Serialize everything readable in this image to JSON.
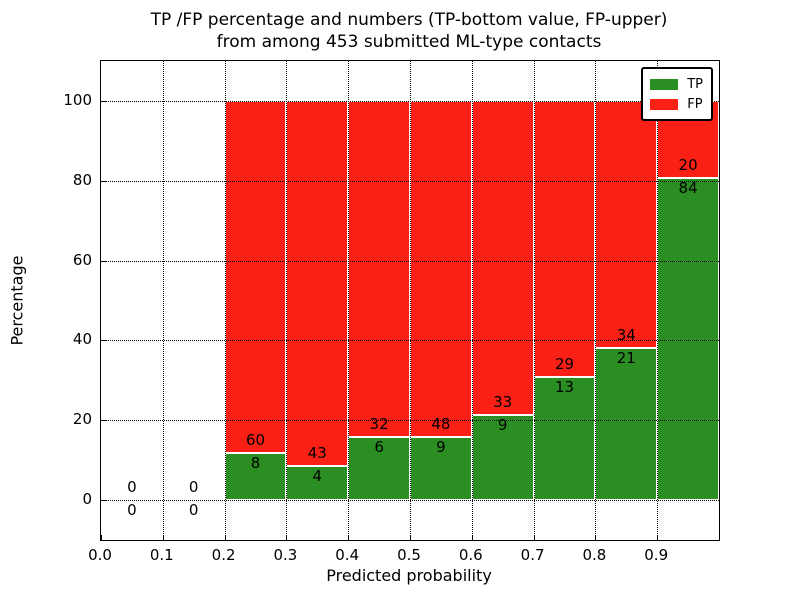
{
  "figure": {
    "title_line1": "TP /FP percentage and numbers (TP-bottom value, FP-upper)",
    "title_line2": "from among 453 submitted ML-type contacts"
  },
  "chart_data": {
    "type": "bar",
    "stacked": true,
    "title": "TP /FP percentage and numbers (TP-bottom value, FP-upper) from among 453 submitted ML-type contacts",
    "xlabel": "Predicted probability",
    "ylabel": "Percentage",
    "xlim": [
      0.0,
      1.0
    ],
    "ylim": [
      -10,
      110
    ],
    "xtick_labels": [
      "0.0",
      "0.1",
      "0.2",
      "0.3",
      "0.4",
      "0.5",
      "0.6",
      "0.7",
      "0.8",
      "0.9"
    ],
    "ytick_values": [
      0,
      20,
      40,
      60,
      80,
      100
    ],
    "grid": "dotted both axes",
    "total_contacts": 453,
    "legend": {
      "position": "upper right",
      "entries": [
        {
          "label": "TP",
          "color": "#2b8e22"
        },
        {
          "label": "FP",
          "color": "#fb2015"
        }
      ]
    },
    "bins": [
      {
        "range": [
          0.0,
          0.1
        ],
        "tp": 0,
        "fp": 0
      },
      {
        "range": [
          0.1,
          0.2
        ],
        "tp": 0,
        "fp": 0
      },
      {
        "range": [
          0.2,
          0.3
        ],
        "tp": 8,
        "fp": 60
      },
      {
        "range": [
          0.3,
          0.4
        ],
        "tp": 4,
        "fp": 43
      },
      {
        "range": [
          0.4,
          0.5
        ],
        "tp": 6,
        "fp": 32
      },
      {
        "range": [
          0.5,
          0.6
        ],
        "tp": 9,
        "fp": 48
      },
      {
        "range": [
          0.6,
          0.7
        ],
        "tp": 9,
        "fp": 33
      },
      {
        "range": [
          0.7,
          0.8
        ],
        "tp": 13,
        "fp": 29
      },
      {
        "range": [
          0.8,
          0.9
        ],
        "tp": 21,
        "fp": 34
      },
      {
        "range": [
          0.9,
          1.0
        ],
        "tp": 84,
        "fp": 20
      }
    ]
  },
  "colors": {
    "tp_green": "#2b8e22",
    "fp_red": "#fb2015",
    "grid": "#000000",
    "background": "#ffffff"
  }
}
